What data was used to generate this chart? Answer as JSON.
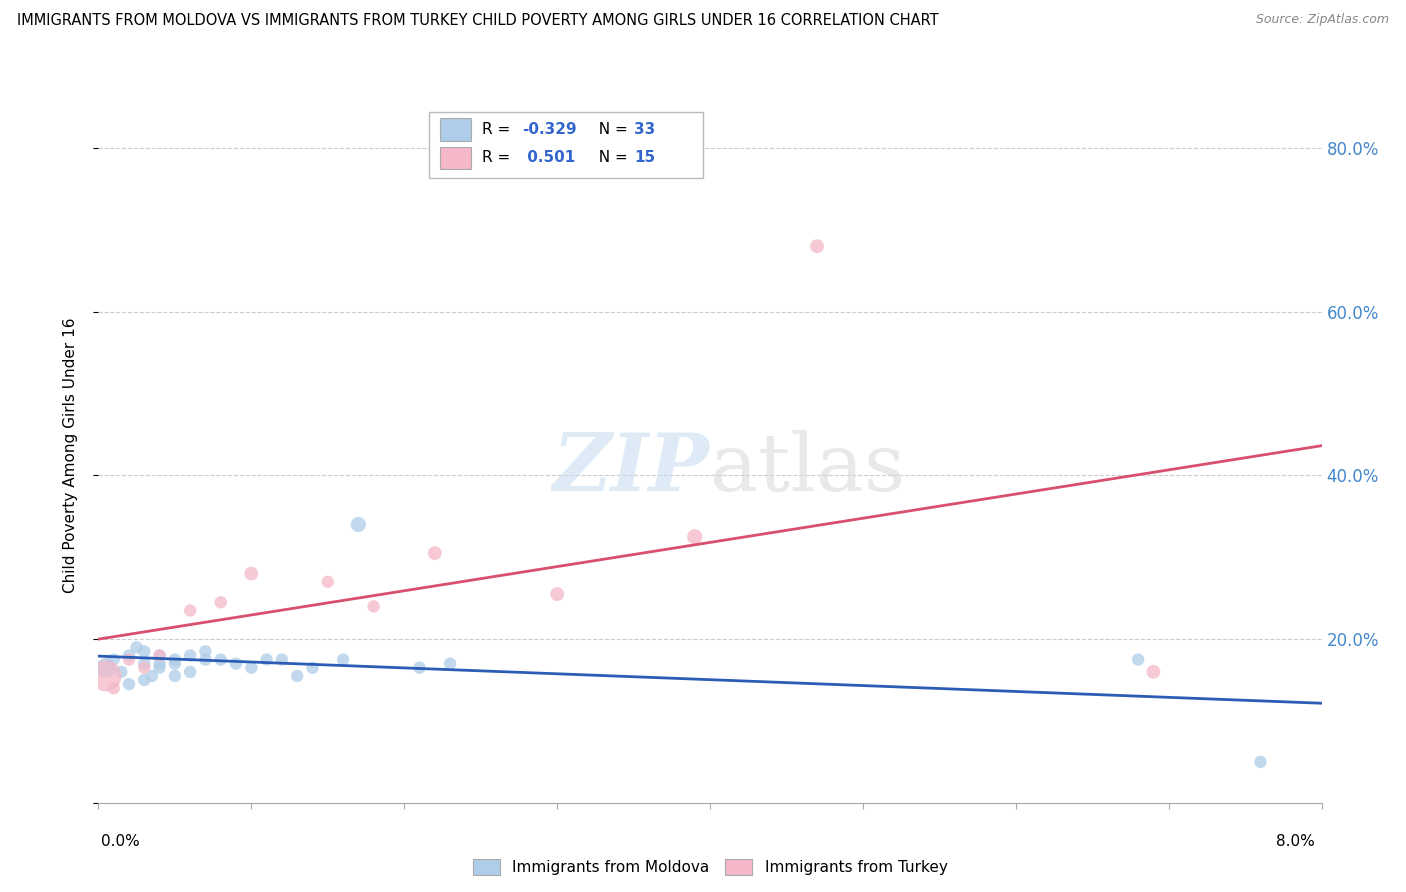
{
  "title": "IMMIGRANTS FROM MOLDOVA VS IMMIGRANTS FROM TURKEY CHILD POVERTY AMONG GIRLS UNDER 16 CORRELATION CHART",
  "source": "Source: ZipAtlas.com",
  "ylabel": "Child Poverty Among Girls Under 16",
  "xlim": [
    0.0,
    0.08
  ],
  "ylim": [
    0.0,
    0.85
  ],
  "yticks": [
    0.0,
    0.2,
    0.4,
    0.6,
    0.8
  ],
  "ytick_labels": [
    "",
    "20.0%",
    "40.0%",
    "60.0%",
    "80.0%"
  ],
  "moldova_color": "#aecde8",
  "turkey_color": "#f4b8c8",
  "moldova_line_color": "#2b5db5",
  "turkey_line_color": "#d94f6e",
  "R_moldova": "-0.329",
  "N_moldova": "33",
  "R_turkey": "0.501",
  "N_turkey": "15",
  "moldova_x": [
    0.0005,
    0.001,
    0.0015,
    0.002,
    0.002,
    0.0025,
    0.003,
    0.003,
    0.003,
    0.0035,
    0.004,
    0.004,
    0.004,
    0.005,
    0.005,
    0.005,
    0.006,
    0.006,
    0.007,
    0.007,
    0.008,
    0.009,
    0.01,
    0.011,
    0.012,
    0.013,
    0.014,
    0.016,
    0.017,
    0.021,
    0.023,
    0.068,
    0.076
  ],
  "moldova_y": [
    0.165,
    0.175,
    0.16,
    0.145,
    0.18,
    0.19,
    0.15,
    0.17,
    0.185,
    0.155,
    0.17,
    0.18,
    0.165,
    0.155,
    0.17,
    0.175,
    0.16,
    0.18,
    0.175,
    0.185,
    0.175,
    0.17,
    0.165,
    0.175,
    0.175,
    0.155,
    0.165,
    0.175,
    0.34,
    0.165,
    0.17,
    0.175,
    0.05
  ],
  "moldova_sizes": [
    200,
    80,
    80,
    80,
    80,
    80,
    80,
    80,
    80,
    80,
    80,
    80,
    80,
    80,
    80,
    80,
    80,
    80,
    80,
    80,
    80,
    80,
    80,
    80,
    80,
    80,
    80,
    80,
    120,
    80,
    80,
    80,
    80
  ],
  "turkey_x": [
    0.0005,
    0.001,
    0.002,
    0.003,
    0.004,
    0.006,
    0.008,
    0.01,
    0.015,
    0.018,
    0.022,
    0.03,
    0.039,
    0.047,
    0.069
  ],
  "turkey_y": [
    0.155,
    0.14,
    0.175,
    0.165,
    0.18,
    0.235,
    0.245,
    0.28,
    0.27,
    0.24,
    0.305,
    0.255,
    0.325,
    0.68,
    0.16
  ],
  "turkey_sizes": [
    500,
    80,
    80,
    80,
    80,
    80,
    80,
    100,
    80,
    80,
    100,
    100,
    120,
    100,
    100
  ]
}
